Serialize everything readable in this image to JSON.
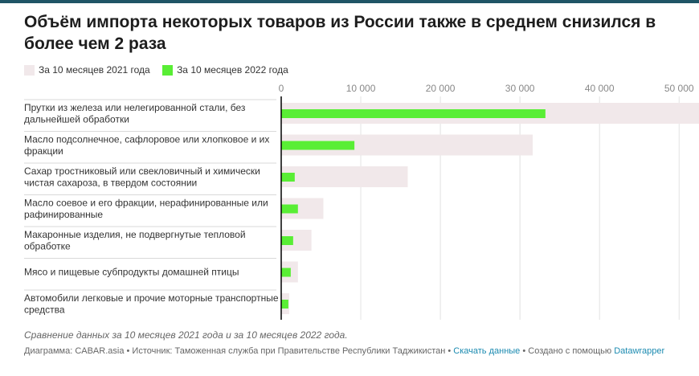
{
  "title": "Объём импорта некоторых товаров из России также в среднем снизился в более чем 2 раза",
  "colors": {
    "series_2021": "#f1e8ea",
    "series_2022": "#59ee35",
    "accent": "#1f5566",
    "link": "#1a8ab0"
  },
  "chart_data": {
    "type": "bar",
    "orientation": "horizontal",
    "title": "Объём импорта некоторых товаров из России также в среднем снизился в более чем 2 раза",
    "categories": [
      [
        "Прутки из железа или нелегированной стали, без",
        "дальнейшей обработки"
      ],
      [
        "Масло подсолнечное, сафлоровое или хлопковое и их",
        "фракции"
      ],
      [
        "Сахар тростниковый или свекловичный и химически",
        "чистая сахароза, в твердом состоянии"
      ],
      [
        "Масло соевое и его фракции, нерафинированные или",
        "рафинированные"
      ],
      [
        "Макаронные изделия, не подвергнутые тепловой",
        "обработке"
      ],
      [
        "Мясо и пищевые субпродукты домашней птицы"
      ],
      [
        "Автомобили легковые и прочие моторные транспортные",
        "средства"
      ]
    ],
    "series": [
      {
        "name": "За 10 месяцев 2021 года",
        "values": [
          53000,
          31600,
          15900,
          5300,
          3800,
          2100,
          1000
        ]
      },
      {
        "name": "За 10 месяцев 2022 года",
        "values": [
          33200,
          9200,
          1700,
          2100,
          1500,
          1200,
          900
        ]
      }
    ],
    "xlim": [
      0,
      52500
    ],
    "ticks": [
      0,
      10000,
      20000,
      30000,
      40000,
      50000
    ],
    "tick_labels": [
      "0",
      "10 000",
      "20 000",
      "30 000",
      "40 000",
      "50 000"
    ],
    "grid": true,
    "legend_position": "top-left"
  },
  "notes": "Сравнение данных за 10 месяцев 2021 года и за 10 месяцев 2022 года.",
  "footer": {
    "chart_by": "Диаграмма: CABAR.asia",
    "sep1": " • ",
    "source": "Источник: Таможенная служба при Правительстве Республики Таджикистан",
    "sep2": " • ",
    "download": "Скачать данные",
    "sep3": " • ",
    "created_with": "Создано с помощью ",
    "datawrapper": "Datawrapper"
  }
}
